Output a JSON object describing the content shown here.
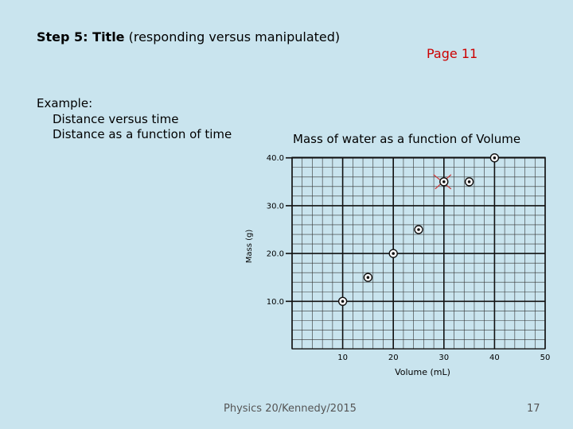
{
  "slide": {
    "heading_bold": "Step 5: Title",
    "heading_rest": " (responding versus manipulated)",
    "page_label": "Page 11",
    "example_label": "Example:",
    "example_lines": [
      "Distance versus time",
      "Distance as a function of time"
    ],
    "footer": "Physics 20/Kennedy/2015",
    "slide_number": "17"
  },
  "chart_data": {
    "type": "scatter",
    "title": "Mass of water as a function of Volume",
    "xlabel": "Volume (mL)",
    "ylabel": "Mass (g)",
    "xlim": [
      0,
      50
    ],
    "ylim": [
      0,
      40
    ],
    "xticks": [
      10,
      20,
      30,
      40,
      50
    ],
    "yticks": [
      "10.0",
      "20.0",
      "30.0",
      "40.0"
    ],
    "grid": true,
    "points": [
      {
        "x": 10,
        "y": 10
      },
      {
        "x": 15,
        "y": 15
      },
      {
        "x": 20,
        "y": 20
      },
      {
        "x": 25,
        "y": 25
      },
      {
        "x": 30,
        "y": 35
      },
      {
        "x": 35,
        "y": 35
      },
      {
        "x": 40,
        "y": 40
      }
    ],
    "crossed_out_point": {
      "x": 30,
      "y": 35
    }
  }
}
